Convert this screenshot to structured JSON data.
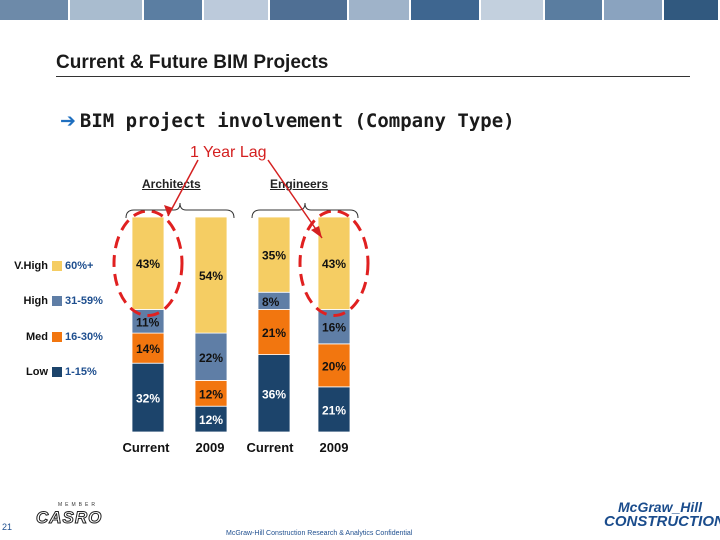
{
  "header": {
    "bar_colors": [
      "#6d8aa9",
      "#a9bccf",
      "#5b7ea2",
      "#bccadb",
      "#4f6f94",
      "#9fb3c9",
      "#3e6690",
      "#c3d0de",
      "#5a7da0",
      "#8aa3bf",
      "#31597f"
    ],
    "title": "Current & Future BIM Projects",
    "subtitle_arrow": "➔",
    "subtitle": "BIM project involvement (Company Type)",
    "lag_label": "1 Year Lag"
  },
  "legend": [
    {
      "level": "V.High",
      "range": "60%+",
      "color": "#f5cd63"
    },
    {
      "level": "High",
      "range": "31-59%",
      "color": "#5f7ea6"
    },
    {
      "level": "Med",
      "range": "16-30%",
      "color": "#f2760f"
    },
    {
      "level": "Low",
      "range": "1-15%",
      "color": "#1c446b"
    }
  ],
  "chart_data": {
    "type": "bar",
    "stacked": true,
    "title": "1 Year Lag",
    "groups": [
      "Architects",
      "Engineers"
    ],
    "categories": [
      "Current",
      "2009",
      "Current",
      "2009"
    ],
    "ylim": [
      0,
      100
    ],
    "series": [
      {
        "name": "Low",
        "values": [
          32,
          12,
          36,
          21
        ],
        "labels": [
          "32%",
          "12%",
          "36%",
          "21%"
        ]
      },
      {
        "name": "Med",
        "values": [
          14,
          12,
          21,
          20
        ],
        "labels": [
          "14%",
          "12%",
          "21%",
          "20%"
        ]
      },
      {
        "name": "High",
        "values": [
          11,
          22,
          8,
          16
        ],
        "labels": [
          "11%",
          "22%",
          "8%",
          "16%"
        ]
      },
      {
        "name": "V.High",
        "values": [
          43,
          54,
          35,
          43
        ],
        "labels": [
          "43%",
          "54%",
          "35%",
          "43%"
        ]
      }
    ],
    "highlighted": [
      0,
      3
    ]
  },
  "footer": {
    "page_number": "21",
    "casro_small": "MEMBER",
    "casro_logo": "CASRO",
    "text": "McGraw-Hill Construction Research & Analytics Confidential",
    "brand_line1": "McGraw_Hill",
    "brand_line2": "CONSTRUCTION"
  }
}
